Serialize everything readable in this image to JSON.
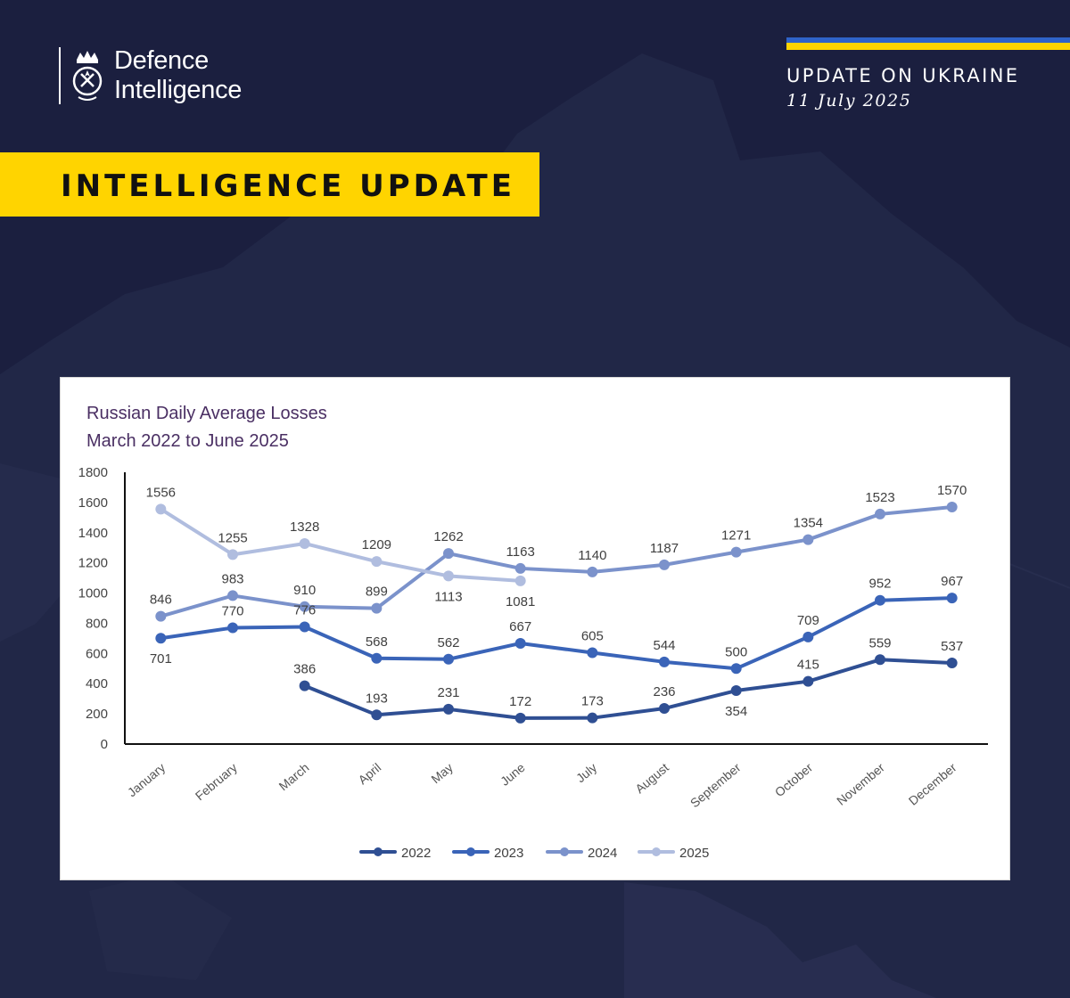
{
  "header": {
    "logo_line1": "Defence",
    "logo_line2": "Intelligence",
    "update_title": "UPDATE ON UKRAINE",
    "update_date": "11 July 2025",
    "banner": "INTELLIGENCE UPDATE"
  },
  "colors": {
    "background": "#1b1f3f",
    "banner": "#ffd400",
    "flag_blue": "#2f63c9",
    "flag_yellow": "#ffd400"
  },
  "chart_data": {
    "type": "line",
    "title_line1": "Russian Daily Average Losses",
    "title_line2": "March 2022 to June 2025",
    "categories": [
      "January",
      "February",
      "March",
      "April",
      "May",
      "June",
      "July",
      "August",
      "September",
      "October",
      "November",
      "December"
    ],
    "ylim": [
      0,
      1800
    ],
    "yticks": [
      0,
      200,
      400,
      600,
      800,
      1000,
      1200,
      1400,
      1600,
      1800
    ],
    "grid": false,
    "legend_position": "bottom",
    "series": [
      {
        "name": "2022",
        "color": "#2f4f93",
        "values": [
          null,
          null,
          386,
          193,
          231,
          172,
          173,
          236,
          354,
          415,
          559,
          537
        ],
        "label_pos": [
          "",
          "",
          "above",
          "above",
          "above",
          "above",
          "above",
          "above",
          "below",
          "above",
          "above",
          "above"
        ]
      },
      {
        "name": "2023",
        "color": "#3a64b8",
        "values": [
          701,
          770,
          776,
          568,
          562,
          667,
          605,
          544,
          500,
          709,
          952,
          967
        ],
        "label_pos": [
          "below",
          "above",
          "above",
          "above",
          "above",
          "above",
          "above",
          "above",
          "above",
          "above",
          "above",
          "above"
        ]
      },
      {
        "name": "2024",
        "color": "#7b92cb",
        "values": [
          846,
          983,
          910,
          899,
          1262,
          1163,
          1140,
          1187,
          1271,
          1354,
          1523,
          1570
        ],
        "label_pos": [
          "above",
          "above",
          "above",
          "above",
          "above",
          "above",
          "above",
          "above",
          "above",
          "above",
          "above",
          "above"
        ]
      },
      {
        "name": "2025",
        "color": "#b0bddf",
        "values": [
          1556,
          1255,
          1328,
          1209,
          1113,
          1081,
          null,
          null,
          null,
          null,
          null,
          null
        ],
        "label_pos": [
          "above",
          "above",
          "above",
          "above",
          "below",
          "below",
          "",
          "",
          "",
          "",
          "",
          ""
        ]
      }
    ]
  }
}
